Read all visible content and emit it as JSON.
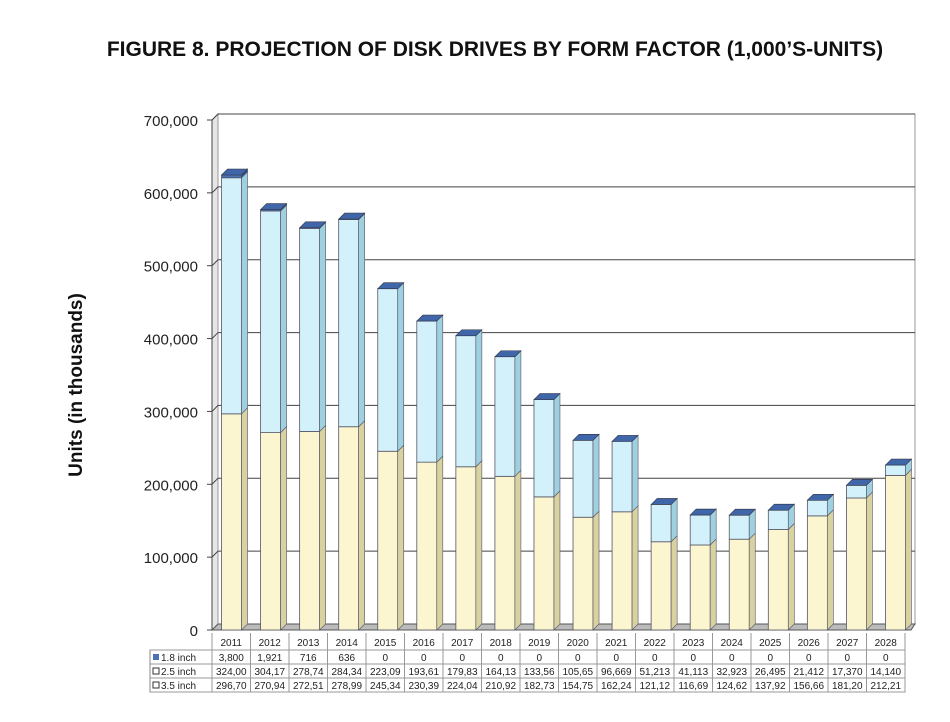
{
  "title": "FIGURE 8.  PROJECTION OF DISK DRIVES BY FORM FACTOR (1,000’S-UNITS)",
  "chart_data": {
    "type": "bar",
    "stacked": true,
    "title": "FIGURE 8.  PROJECTION OF DISK DRIVES BY FORM FACTOR (1,000’S-UNITS)",
    "xlabel": "",
    "ylabel": "Units (in thousands)",
    "ylim": [
      0,
      700000
    ],
    "yticks": [
      "0",
      "100,000",
      "200,000",
      "300,000",
      "400,000",
      "500,000",
      "600,000",
      "700,000"
    ],
    "grid": true,
    "legend": "data-table",
    "categories": [
      "2011",
      "2012",
      "2013",
      "2014",
      "2015",
      "2016",
      "2017",
      "2018",
      "2019",
      "2020",
      "2021",
      "2022",
      "2023",
      "2024",
      "2025",
      "2026",
      "2027",
      "2028"
    ],
    "series": [
      {
        "name": "3.5 inch",
        "color": "#fbf6cf",
        "values": [
          296700,
          270940,
          272510,
          278990,
          245340,
          230390,
          224040,
          210920,
          182730,
          154750,
          162240,
          121120,
          116690,
          124620,
          137920,
          156660,
          181200,
          212210
        ],
        "labels": [
          "296,70",
          "270,94",
          "272,51",
          "278,99",
          "245,34",
          "230,39",
          "224,04",
          "210,92",
          "182,73",
          "154,75",
          "162,24",
          "121,12",
          "116,69",
          "124,62",
          "137,92",
          "156,66",
          "181,20",
          "212,21"
        ]
      },
      {
        "name": "2.5 inch",
        "color": "#d3f1fa",
        "values": [
          324000,
          304170,
          278740,
          284340,
          223090,
          193610,
          179830,
          164130,
          133560,
          105650,
          96669,
          51213,
          41113,
          32923,
          26495,
          21412,
          17370,
          14140
        ],
        "labels": [
          "324,00",
          "304,17",
          "278,74",
          "284,34",
          "223,09",
          "193,61",
          "179,83",
          "164,13",
          "133,56",
          "105,65",
          "96,669",
          "51,213",
          "41,113",
          "32,923",
          "26,495",
          "21,412",
          "17,370",
          "14,140"
        ]
      },
      {
        "name": "1.8 inch",
        "color": "#4a72b8",
        "values": [
          3800,
          1921,
          716,
          636,
          0,
          0,
          0,
          0,
          0,
          0,
          0,
          0,
          0,
          0,
          0,
          0,
          0,
          0
        ],
        "labels": [
          "3,800",
          "1,921",
          "716",
          "636",
          "0",
          "0",
          "0",
          "0",
          "0",
          "0",
          "0",
          "0",
          "0",
          "0",
          "0",
          "0",
          "0",
          "0"
        ]
      }
    ]
  }
}
